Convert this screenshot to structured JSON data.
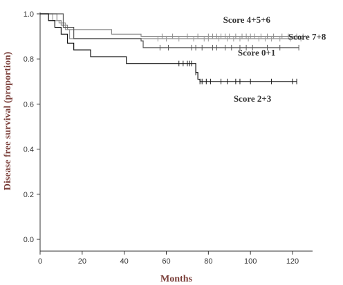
{
  "chart_data": {
    "type": "line",
    "title": "",
    "xlabel": "Months",
    "ylabel": "Disease free survival (proportion)",
    "xlim": [
      0,
      130
    ],
    "ylim": [
      0,
      1.0
    ],
    "x_ticks": [
      "0",
      "20",
      "40",
      "60",
      "80",
      "100",
      "120"
    ],
    "y_ticks": [
      "0.0",
      "0.2",
      "0.4",
      "0.6",
      "0.8",
      "1.0"
    ],
    "grid": false,
    "legend": "none",
    "axis_title_color": "#7b3f3a",
    "series": [
      {
        "name": "Score 4+5+6",
        "color": "#888888",
        "steps": [
          [
            0,
            1.0
          ],
          [
            8,
            0.97
          ],
          [
            10,
            0.95
          ],
          [
            13,
            0.93
          ],
          [
            34,
            0.91
          ],
          [
            48,
            0.9
          ],
          [
            125,
            0.9
          ]
        ],
        "censor": [
          58,
          63,
          70,
          75,
          80,
          82,
          84,
          86,
          88,
          90,
          93,
          96,
          98,
          100,
          102,
          105,
          108,
          111,
          115,
          118,
          122,
          125
        ]
      },
      {
        "name": "Score 7+8",
        "color": "#999999",
        "steps": [
          [
            0,
            1.0
          ],
          [
            6,
            0.97
          ],
          [
            9,
            0.96
          ],
          [
            12,
            0.93
          ],
          [
            14,
            0.89
          ],
          [
            50,
            0.89
          ],
          [
            125,
            0.89
          ]
        ],
        "censor": [
          56,
          60,
          66,
          73,
          78,
          80,
          85,
          89,
          92,
          95,
          99,
          104,
          107,
          110,
          114,
          119,
          124
        ]
      },
      {
        "name": "Score 0+1",
        "color": "#555555",
        "steps": [
          [
            0,
            1.0
          ],
          [
            11,
            0.94
          ],
          [
            16,
            0.89
          ],
          [
            48,
            0.88
          ],
          [
            49,
            0.85
          ],
          [
            123,
            0.85
          ]
        ],
        "censor": [
          57,
          61,
          72,
          74,
          77,
          82,
          84,
          88,
          91,
          95,
          98,
          101,
          108,
          114,
          123
        ]
      },
      {
        "name": "Score 2+3",
        "color": "#111111",
        "steps": [
          [
            0,
            1.0
          ],
          [
            4,
            0.97
          ],
          [
            7,
            0.94
          ],
          [
            10,
            0.91
          ],
          [
            13,
            0.87
          ],
          [
            16,
            0.84
          ],
          [
            24,
            0.81
          ],
          [
            38,
            0.81
          ],
          [
            41,
            0.78
          ],
          [
            73,
            0.78
          ],
          [
            74,
            0.74
          ],
          [
            75,
            0.71
          ],
          [
            76,
            0.7
          ],
          [
            122,
            0.7
          ]
        ],
        "censor": [
          66,
          68,
          70,
          71,
          72,
          74,
          76,
          77,
          79,
          81,
          86,
          89,
          93,
          95,
          100,
          110,
          120,
          122
        ]
      }
    ],
    "labels": [
      {
        "text": "Score 4+5+6",
        "x": 87,
        "y": 0.96
      },
      {
        "text": "Score 7+8",
        "x": 118,
        "y": 0.885
      },
      {
        "text": "Score 0+1",
        "x": 94,
        "y": 0.815
      },
      {
        "text": "Score 2+3",
        "x": 92,
        "y": 0.61
      }
    ]
  }
}
